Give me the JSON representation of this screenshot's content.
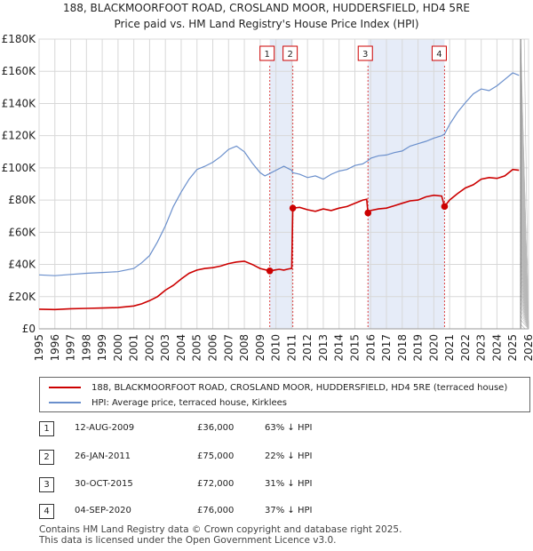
{
  "title_line1": "188, BLACKMOORFOOT ROAD, CROSLAND MOOR, HUDDERSFIELD, HD4 5RE",
  "title_line2": "Price paid vs. HM Land Registry's House Price Index (HPI)",
  "chart_data": {
    "type": "line",
    "xlim": [
      1995,
      2026
    ],
    "ylim": [
      0,
      180000
    ],
    "y_ticks": [
      0,
      20000,
      40000,
      60000,
      80000,
      100000,
      120000,
      140000,
      160000,
      180000
    ],
    "y_tick_labels": [
      "£0",
      "£20K",
      "£40K",
      "£60K",
      "£80K",
      "£100K",
      "£120K",
      "£140K",
      "£160K",
      "£180K"
    ],
    "x_ticks": [
      1995,
      1996,
      1997,
      1998,
      1999,
      2000,
      2001,
      2002,
      2003,
      2004,
      2005,
      2006,
      2007,
      2008,
      2009,
      2010,
      2011,
      2012,
      2013,
      2014,
      2015,
      2016,
      2017,
      2018,
      2019,
      2020,
      2021,
      2022,
      2023,
      2024,
      2025,
      2026
    ],
    "grid": true,
    "legend_position": "below-chart",
    "series": [
      {
        "name": "188, BLACKMOORFOOT ROAD, CROSLAND MOOR, HUDDERSFIELD, HD4 5RE (terraced house)",
        "color": "#cc0000",
        "x": [
          1995.0,
          1996.0,
          1997.0,
          1998.0,
          1999.0,
          2000.0,
          2001.0,
          2001.5,
          2002.0,
          2002.5,
          2003.0,
          2003.5,
          2004.0,
          2004.5,
          2005.0,
          2005.5,
          2006.0,
          2006.5,
          2007.0,
          2007.5,
          2008.0,
          2008.5,
          2009.0,
          2009.61,
          2009.9,
          2010.2,
          2010.5,
          2010.8,
          2011.0,
          2011.07,
          2011.5,
          2012.0,
          2012.5,
          2013.0,
          2013.5,
          2014.0,
          2014.5,
          2015.0,
          2015.5,
          2015.75,
          2015.83,
          2016.0,
          2016.5,
          2017.0,
          2017.5,
          2018.0,
          2018.5,
          2019.0,
          2019.5,
          2020.0,
          2020.5,
          2020.68,
          2021.0,
          2021.5,
          2022.0,
          2022.5,
          2023.0,
          2023.5,
          2024.0,
          2024.5,
          2025.0,
          2025.4
        ],
        "values": [
          12200,
          12000,
          12500,
          12700,
          12900,
          13200,
          14200,
          15500,
          17500,
          20000,
          24000,
          27000,
          31000,
          34500,
          36500,
          37500,
          38000,
          39000,
          40500,
          41500,
          42000,
          40000,
          37500,
          36000,
          36500,
          37000,
          36500,
          37200,
          37500,
          75000,
          75500,
          74000,
          73000,
          74500,
          73500,
          75000,
          76000,
          78000,
          80000,
          80500,
          72000,
          73500,
          74500,
          75000,
          76500,
          78000,
          79500,
          80000,
          82000,
          83000,
          82500,
          76000,
          80000,
          84000,
          87500,
          89500,
          93000,
          94000,
          93500,
          95000,
          99000,
          98500
        ]
      },
      {
        "name": "HPI: Average price, terraced house, Kirklees",
        "color": "#6a8fcc",
        "x": [
          1995.0,
          1996.0,
          1997.0,
          1998.0,
          1999.0,
          2000.0,
          2001.0,
          2001.5,
          2002.0,
          2002.5,
          2003.0,
          2003.5,
          2004.0,
          2004.5,
          2005.0,
          2005.5,
          2006.0,
          2006.5,
          2007.0,
          2007.5,
          2008.0,
          2008.5,
          2009.0,
          2009.3,
          2009.61,
          2010.0,
          2010.5,
          2011.0,
          2011.07,
          2011.5,
          2012.0,
          2012.5,
          2013.0,
          2013.5,
          2014.0,
          2014.5,
          2015.0,
          2015.5,
          2015.83,
          2016.0,
          2016.5,
          2017.0,
          2017.5,
          2018.0,
          2018.5,
          2019.0,
          2019.5,
          2020.0,
          2020.5,
          2020.68,
          2021.0,
          2021.5,
          2022.0,
          2022.5,
          2023.0,
          2023.5,
          2024.0,
          2024.5,
          2025.0,
          2025.4
        ],
        "values": [
          33500,
          33000,
          33800,
          34500,
          35000,
          35500,
          37500,
          41000,
          45500,
          54000,
          64000,
          76000,
          85000,
          93000,
          99000,
          101000,
          103500,
          107000,
          111500,
          113500,
          110000,
          103000,
          97000,
          95000,
          96500,
          98500,
          101000,
          98500,
          97000,
          96000,
          94000,
          95000,
          93000,
          96000,
          98000,
          99000,
          101500,
          102500,
          104500,
          106000,
          107500,
          108000,
          109500,
          110500,
          113500,
          115000,
          116500,
          118500,
          120000,
          121000,
          127000,
          134500,
          140500,
          146000,
          149000,
          148000,
          151000,
          155000,
          159000,
          157500
        ]
      }
    ],
    "sale_markers": [
      {
        "label": "1",
        "x": 2009.61,
        "y": 36000
      },
      {
        "label": "2",
        "x": 2011.07,
        "y": 75000
      },
      {
        "label": "3",
        "x": 2015.83,
        "y": 72000
      },
      {
        "label": "4",
        "x": 2020.68,
        "y": 76000
      }
    ],
    "shaded_periods": [
      [
        2009.61,
        2011.07
      ],
      [
        2015.83,
        2020.68
      ]
    ]
  },
  "sales": [
    {
      "num": "1",
      "date": "12-AUG-2009",
      "price": "£36,000",
      "pct": "63% ↓ HPI"
    },
    {
      "num": "2",
      "date": "26-JAN-2011",
      "price": "£75,000",
      "pct": "22% ↓ HPI"
    },
    {
      "num": "3",
      "date": "30-OCT-2015",
      "price": "£72,000",
      "pct": "31% ↓ HPI"
    },
    {
      "num": "4",
      "date": "04-SEP-2020",
      "price": "£76,000",
      "pct": "37% ↓ HPI"
    }
  ],
  "footer_line1": "Contains HM Land Registry data © Crown copyright and database right 2025.",
  "footer_line2": "This data is licensed under the Open Government Licence v3.0."
}
